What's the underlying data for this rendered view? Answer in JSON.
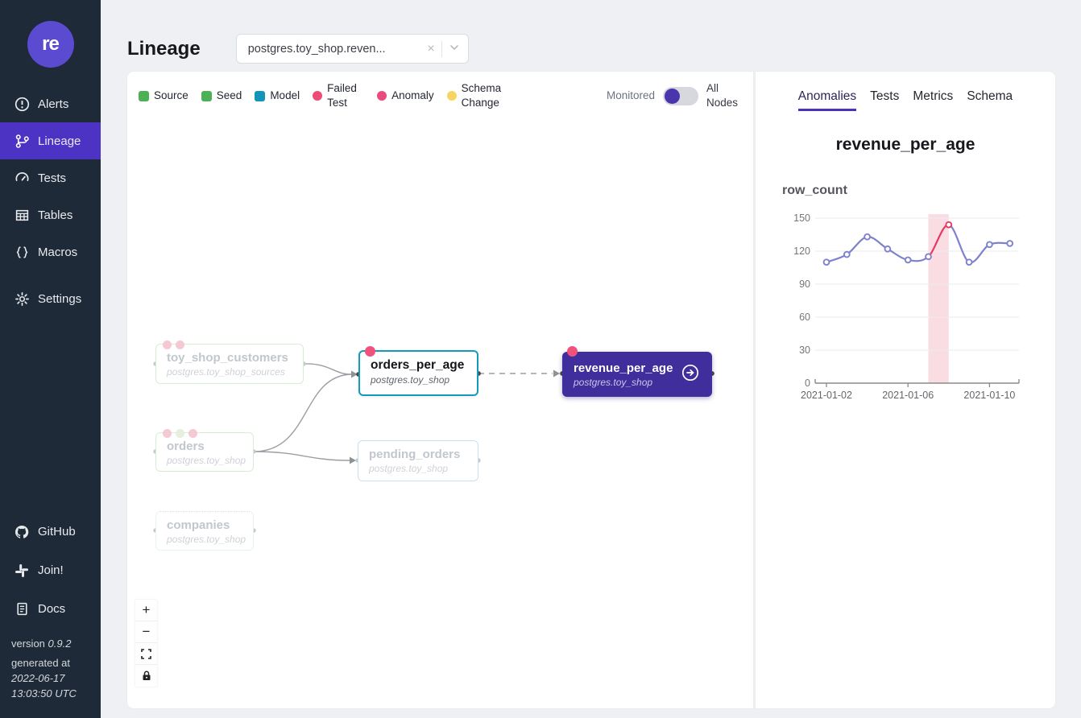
{
  "sidebar": {
    "logo_text": "re",
    "items": [
      {
        "label": "Alerts"
      },
      {
        "label": "Lineage",
        "active": true
      },
      {
        "label": "Tests"
      },
      {
        "label": "Tables"
      },
      {
        "label": "Macros"
      },
      {
        "label": "Settings"
      }
    ],
    "footer_items": [
      {
        "label": "GitHub"
      },
      {
        "label": "Join!"
      },
      {
        "label": "Docs"
      }
    ],
    "version_label": "version",
    "version_value": "0.9.2",
    "generated_label": "generated at",
    "generated_date": "2022-06-17",
    "generated_time": "13:03:50 UTC"
  },
  "header": {
    "title": "Lineage",
    "filter_value": "postgres.toy_shop.reven...",
    "clear_glyph": "×"
  },
  "legend": {
    "items": [
      {
        "label": "Source",
        "shape": "square",
        "color": "#4cb155"
      },
      {
        "label": "Seed",
        "shape": "square-dotted",
        "color": "#4cb155"
      },
      {
        "label": "Model",
        "shape": "square",
        "color": "#1295b7"
      },
      {
        "label": "Failed Test",
        "shape": "circle",
        "color": "#ee4b75"
      },
      {
        "label": "Anomaly",
        "shape": "circle",
        "color": "#e94b7c"
      },
      {
        "label": "Schema Change",
        "shape": "circle",
        "color": "#f6d563"
      }
    ],
    "monitored_label": "Monitored",
    "all_nodes_label": "All Nodes",
    "toggle_color": "#4b35ad"
  },
  "graph": {
    "nodes": [
      {
        "name": "toy_shop_customers",
        "schema": "postgres.toy_shop_sources",
        "type": "source",
        "state": "faded",
        "dots": [
          "#f5c9d2",
          "#f5c9d2"
        ]
      },
      {
        "name": "orders",
        "schema": "postgres.toy_shop",
        "type": "source",
        "state": "faded",
        "dots": [
          "#f5c9d2",
          "#e7eede",
          "#f5c9d2"
        ]
      },
      {
        "name": "companies",
        "schema": "postgres.toy_shop",
        "type": "seed",
        "state": "faded",
        "dots": []
      },
      {
        "name": "orders_per_age",
        "schema": "postgres.toy_shop",
        "type": "model",
        "state": "highlighted",
        "dots": [
          "#f0527c"
        ]
      },
      {
        "name": "pending_orders",
        "schema": "postgres.toy_shop",
        "type": "model",
        "state": "faded",
        "dots": []
      },
      {
        "name": "revenue_per_age",
        "schema": "postgres.toy_shop",
        "type": "model",
        "state": "selected",
        "dots": [
          "#f0527c"
        ]
      }
    ],
    "edge_color": "#9a9fa5",
    "highlight_border": "#159bb9",
    "selected_bg": "#3f2e9c"
  },
  "flow_controls": {
    "zoom_in": "+",
    "zoom_out": "−"
  },
  "panel": {
    "tabs": [
      {
        "label": "Anomalies",
        "active": true
      },
      {
        "label": "Tests"
      },
      {
        "label": "Metrics"
      },
      {
        "label": "Schema"
      }
    ],
    "title": "revenue_per_age",
    "metric_label": "row_count"
  },
  "chart_data": {
    "type": "line",
    "title": "row_count",
    "x": [
      "2021-01-02",
      "2021-01-03",
      "2021-01-04",
      "2021-01-05",
      "2021-01-06",
      "2021-01-07",
      "2021-01-08",
      "2021-01-09",
      "2021-01-10",
      "2021-01-11"
    ],
    "values": [
      110,
      117,
      133,
      122,
      112,
      115,
      144,
      110,
      126,
      127
    ],
    "ylim": [
      0,
      150
    ],
    "yticks": [
      0,
      30,
      60,
      90,
      120,
      150
    ],
    "xticks": [
      "2021-01-02",
      "2021-01-06",
      "2021-01-10"
    ],
    "anomaly_segment": [
      5,
      6
    ],
    "anomaly_point_index": 6,
    "line_color": "#7d81ce",
    "anomaly_color": "#e63964",
    "band_color": "#fadde2",
    "grid": true,
    "legend": false
  }
}
